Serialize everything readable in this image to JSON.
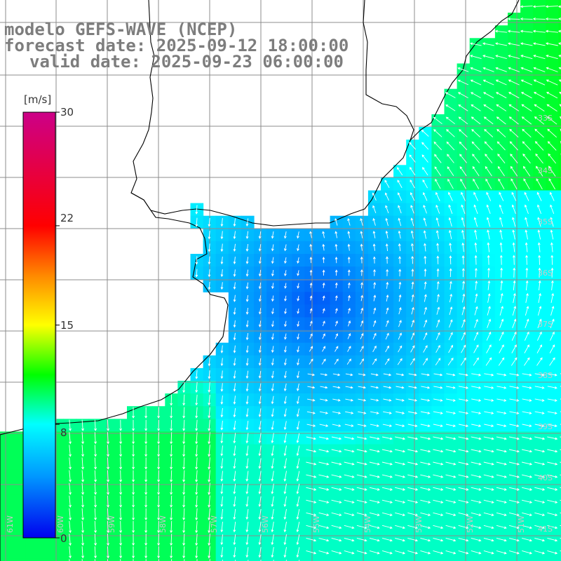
{
  "header": {
    "model": "modelo GEFS-WAVE (NCEP)",
    "forecast": "forecast date: 2025-09-12 18:00:00",
    "valid": "valid date: 2025-09-23 06:00:00"
  },
  "colorbar": {
    "unit": "[m/s]",
    "min": 0,
    "max": 30,
    "tick_labels": [
      "30",
      "22",
      "15",
      "8",
      "0"
    ],
    "tick_values": [
      30,
      22,
      15,
      8,
      0
    ],
    "colors": [
      "#0000ee",
      "#0096ff",
      "#00ffff",
      "#00ff00",
      "#ffff00",
      "#ff8800",
      "#ff0000",
      "#cc0088"
    ]
  },
  "grid": {
    "lat_labels": [
      "33S",
      "34S",
      "35S",
      "36S",
      "37S",
      "38S",
      "39S",
      "40S",
      "41S"
    ],
    "lon_labels": [
      "61W",
      "60W",
      "59W",
      "58W",
      "57W",
      "56W",
      "55W",
      "54W",
      "53W",
      "52W",
      "51W"
    ]
  },
  "map": {
    "land_color": "#ffffff",
    "coast_color": "#000000",
    "arrow_color": "#ffffff"
  }
}
